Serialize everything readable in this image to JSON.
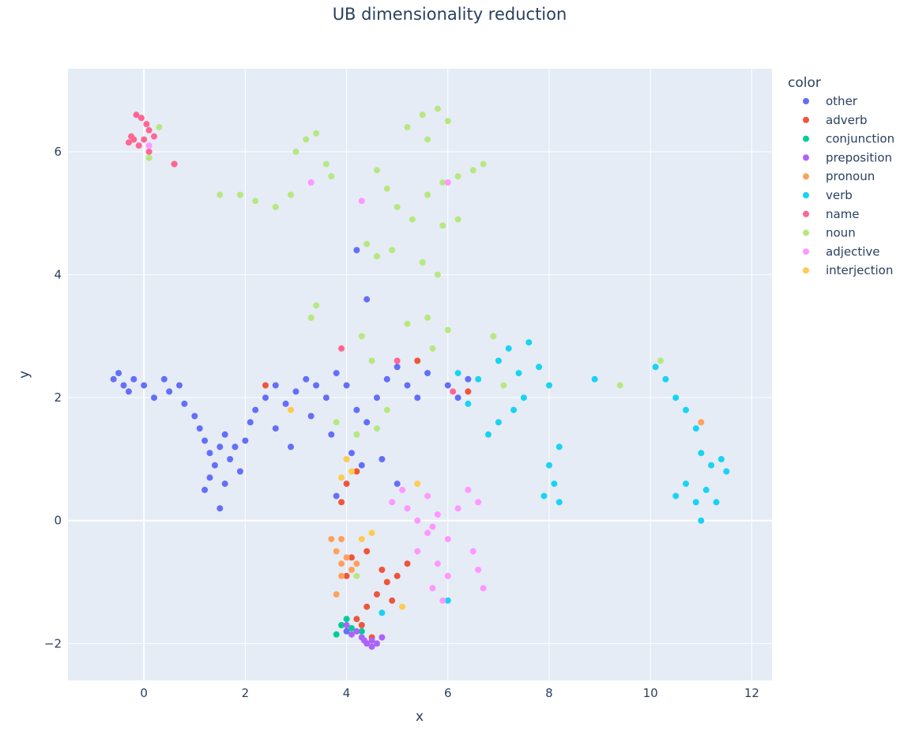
{
  "chart_data": {
    "type": "scatter",
    "title": "UB dimensionality reduction",
    "xlabel": "x",
    "ylabel": "y",
    "xlim": [
      -1.5,
      12.4
    ],
    "ylim": [
      -2.6,
      7.35
    ],
    "x_ticks": [
      0,
      2,
      4,
      6,
      8,
      10,
      12
    ],
    "y_ticks": [
      -2,
      0,
      2,
      4,
      6
    ],
    "y_tick_labels": [
      "−2",
      "0",
      "2",
      "4",
      "6"
    ],
    "grid": true,
    "plot_bg": "#E5ECF6",
    "legend": {
      "title": "color",
      "placement": "right"
    },
    "series": [
      {
        "name": "other",
        "color": "#636efa",
        "points": [
          [
            -0.6,
            2.3
          ],
          [
            -0.4,
            2.2
          ],
          [
            -0.5,
            2.4
          ],
          [
            -0.3,
            2.1
          ],
          [
            -0.2,
            2.3
          ],
          [
            0.0,
            2.2
          ],
          [
            0.2,
            2.0
          ],
          [
            0.4,
            2.3
          ],
          [
            0.5,
            2.1
          ],
          [
            0.7,
            2.2
          ],
          [
            0.8,
            1.9
          ],
          [
            1.0,
            1.7
          ],
          [
            1.1,
            1.5
          ],
          [
            1.2,
            1.3
          ],
          [
            1.3,
            1.1
          ],
          [
            1.4,
            0.9
          ],
          [
            1.5,
            1.2
          ],
          [
            1.6,
            1.4
          ],
          [
            1.7,
            1.0
          ],
          [
            1.8,
            1.2
          ],
          [
            1.9,
            0.8
          ],
          [
            2.0,
            1.3
          ],
          [
            2.1,
            1.6
          ],
          [
            1.6,
            0.6
          ],
          [
            1.3,
            0.7
          ],
          [
            1.2,
            0.5
          ],
          [
            1.5,
            0.2
          ],
          [
            2.2,
            1.8
          ],
          [
            2.4,
            2.0
          ],
          [
            2.6,
            2.2
          ],
          [
            2.8,
            1.9
          ],
          [
            3.0,
            2.1
          ],
          [
            3.2,
            2.3
          ],
          [
            3.4,
            2.2
          ],
          [
            3.6,
            2.0
          ],
          [
            3.8,
            2.4
          ],
          [
            4.0,
            2.2
          ],
          [
            4.2,
            1.8
          ],
          [
            4.4,
            1.6
          ],
          [
            4.6,
            2.0
          ],
          [
            4.8,
            2.3
          ],
          [
            5.0,
            2.5
          ],
          [
            5.2,
            2.2
          ],
          [
            5.4,
            2.0
          ],
          [
            5.6,
            2.4
          ],
          [
            6.0,
            2.2
          ],
          [
            6.2,
            2.0
          ],
          [
            6.4,
            2.3
          ],
          [
            4.4,
            3.6
          ],
          [
            4.2,
            4.4
          ],
          [
            2.6,
            1.5
          ],
          [
            2.9,
            1.2
          ],
          [
            3.3,
            1.7
          ],
          [
            3.7,
            1.4
          ],
          [
            4.1,
            1.1
          ],
          [
            4.3,
            0.9
          ],
          [
            4.7,
            1.0
          ],
          [
            5.0,
            0.6
          ],
          [
            3.8,
            0.4
          ],
          [
            4.0,
            -1.8
          ]
        ]
      },
      {
        "name": "adverb",
        "color": "#EF553B",
        "points": [
          [
            4.2,
            -1.6
          ],
          [
            4.4,
            -1.4
          ],
          [
            4.6,
            -1.2
          ],
          [
            4.8,
            -1.0
          ],
          [
            5.0,
            -0.9
          ],
          [
            4.5,
            -1.9
          ],
          [
            4.3,
            -1.7
          ],
          [
            4.7,
            -0.8
          ],
          [
            5.2,
            -0.7
          ],
          [
            4.0,
            -0.9
          ],
          [
            4.1,
            -0.6
          ],
          [
            4.4,
            -0.5
          ],
          [
            4.9,
            -1.3
          ],
          [
            3.9,
            0.3
          ],
          [
            4.0,
            0.6
          ],
          [
            4.2,
            0.8
          ],
          [
            2.4,
            2.2
          ],
          [
            6.4,
            2.1
          ],
          [
            0.6,
            5.8
          ],
          [
            5.4,
            2.6
          ]
        ]
      },
      {
        "name": "conjunction",
        "color": "#00cc96",
        "points": [
          [
            3.8,
            -1.85
          ],
          [
            3.9,
            -1.7
          ],
          [
            4.0,
            -1.6
          ],
          [
            4.1,
            -1.75
          ],
          [
            4.3,
            -1.8
          ]
        ]
      },
      {
        "name": "preposition",
        "color": "#ab63fa",
        "points": [
          [
            4.3,
            -1.9
          ],
          [
            4.4,
            -2.0
          ],
          [
            4.5,
            -2.05
          ],
          [
            4.6,
            -2.0
          ],
          [
            4.2,
            -1.8
          ],
          [
            4.0,
            -1.7
          ],
          [
            4.1,
            -1.85
          ],
          [
            4.7,
            -1.9
          ],
          [
            4.5,
            -1.95
          ],
          [
            4.35,
            -1.95
          ]
        ]
      },
      {
        "name": "pronoun",
        "color": "#FFA15A",
        "points": [
          [
            3.7,
            -0.3
          ],
          [
            3.8,
            -0.5
          ],
          [
            3.9,
            -0.7
          ],
          [
            4.0,
            -0.6
          ],
          [
            4.1,
            -0.8
          ],
          [
            3.8,
            -1.2
          ],
          [
            3.9,
            -0.9
          ],
          [
            4.2,
            -0.7
          ],
          [
            3.9,
            -0.3
          ],
          [
            11.0,
            1.6
          ]
        ]
      },
      {
        "name": "verb",
        "color": "#19d3f3",
        "points": [
          [
            7.0,
            2.6
          ],
          [
            7.2,
            2.8
          ],
          [
            7.4,
            2.4
          ],
          [
            7.6,
            2.9
          ],
          [
            7.8,
            2.5
          ],
          [
            8.0,
            2.2
          ],
          [
            7.5,
            2.0
          ],
          [
            7.3,
            1.8
          ],
          [
            7.0,
            1.6
          ],
          [
            6.8,
            1.4
          ],
          [
            8.0,
            0.9
          ],
          [
            8.1,
            0.6
          ],
          [
            8.2,
            0.3
          ],
          [
            7.9,
            0.4
          ],
          [
            8.2,
            1.2
          ],
          [
            10.1,
            2.5
          ],
          [
            10.3,
            2.3
          ],
          [
            10.5,
            2.0
          ],
          [
            10.7,
            1.8
          ],
          [
            10.9,
            1.5
          ],
          [
            11.0,
            1.1
          ],
          [
            11.2,
            0.9
          ],
          [
            11.4,
            1.0
          ],
          [
            11.5,
            0.8
          ],
          [
            11.1,
            0.5
          ],
          [
            10.9,
            0.3
          ],
          [
            10.7,
            0.6
          ],
          [
            10.5,
            0.4
          ],
          [
            11.0,
            0.0
          ],
          [
            11.3,
            0.3
          ],
          [
            6.2,
            2.4
          ],
          [
            6.6,
            2.3
          ],
          [
            6.4,
            1.9
          ],
          [
            8.9,
            2.3
          ],
          [
            6.0,
            -1.3
          ],
          [
            4.7,
            -1.5
          ]
        ]
      },
      {
        "name": "name",
        "color": "#FF6692",
        "points": [
          [
            -0.15,
            6.6
          ],
          [
            -0.05,
            6.55
          ],
          [
            0.05,
            6.45
          ],
          [
            0.1,
            6.35
          ],
          [
            -0.2,
            6.2
          ],
          [
            -0.3,
            6.15
          ],
          [
            -0.1,
            6.1
          ],
          [
            0.0,
            6.2
          ],
          [
            0.2,
            6.25
          ],
          [
            0.6,
            5.8
          ],
          [
            0.1,
            6.0
          ],
          [
            -0.25,
            6.25
          ],
          [
            3.9,
            2.8
          ],
          [
            5.0,
            2.6
          ],
          [
            6.1,
            2.1
          ]
        ]
      },
      {
        "name": "noun",
        "color": "#B6E880",
        "points": [
          [
            5.2,
            6.4
          ],
          [
            5.5,
            6.6
          ],
          [
            5.8,
            6.7
          ],
          [
            6.0,
            6.5
          ],
          [
            5.6,
            6.2
          ],
          [
            4.6,
            5.7
          ],
          [
            4.8,
            5.4
          ],
          [
            5.0,
            5.1
          ],
          [
            5.3,
            4.9
          ],
          [
            5.6,
            5.3
          ],
          [
            5.9,
            5.5
          ],
          [
            6.2,
            5.6
          ],
          [
            6.5,
            5.7
          ],
          [
            6.7,
            5.8
          ],
          [
            5.9,
            4.8
          ],
          [
            6.2,
            4.9
          ],
          [
            4.4,
            4.5
          ],
          [
            4.6,
            4.3
          ],
          [
            4.9,
            4.4
          ],
          [
            5.5,
            4.2
          ],
          [
            5.8,
            4.0
          ],
          [
            3.0,
            6.0
          ],
          [
            3.2,
            6.2
          ],
          [
            3.4,
            6.3
          ],
          [
            3.6,
            5.8
          ],
          [
            3.7,
            5.6
          ],
          [
            2.9,
            5.3
          ],
          [
            2.6,
            5.1
          ],
          [
            2.2,
            5.2
          ],
          [
            1.9,
            5.3
          ],
          [
            1.5,
            5.3
          ],
          [
            3.3,
            3.3
          ],
          [
            3.4,
            3.5
          ],
          [
            4.3,
            3.0
          ],
          [
            4.5,
            2.6
          ],
          [
            5.2,
            3.2
          ],
          [
            5.6,
            3.3
          ],
          [
            5.7,
            2.8
          ],
          [
            6.0,
            3.1
          ],
          [
            6.9,
            3.0
          ],
          [
            7.1,
            2.2
          ],
          [
            4.8,
            1.8
          ],
          [
            4.6,
            1.5
          ],
          [
            4.2,
            1.4
          ],
          [
            3.8,
            1.6
          ],
          [
            9.4,
            2.2
          ],
          [
            10.2,
            2.6
          ],
          [
            0.1,
            5.9
          ],
          [
            0.3,
            6.4
          ],
          [
            4.2,
            -0.9
          ]
        ]
      },
      {
        "name": "adjective",
        "color": "#FF97FF",
        "points": [
          [
            5.2,
            0.2
          ],
          [
            5.4,
            0.0
          ],
          [
            5.6,
            -0.2
          ],
          [
            5.8,
            0.1
          ],
          [
            6.0,
            -0.3
          ],
          [
            6.2,
            0.2
          ],
          [
            5.6,
            0.4
          ],
          [
            5.4,
            -0.5
          ],
          [
            5.8,
            -0.7
          ],
          [
            6.0,
            -0.9
          ],
          [
            5.7,
            -1.1
          ],
          [
            5.9,
            -1.3
          ],
          [
            6.5,
            -0.5
          ],
          [
            6.6,
            -0.8
          ],
          [
            6.7,
            -1.1
          ],
          [
            6.4,
            0.5
          ],
          [
            6.6,
            0.3
          ],
          [
            5.1,
            0.5
          ],
          [
            4.9,
            0.3
          ],
          [
            4.3,
            5.2
          ],
          [
            3.3,
            5.5
          ],
          [
            6.0,
            5.5
          ],
          [
            0.1,
            6.1
          ],
          [
            5.7,
            -0.1
          ]
        ]
      },
      {
        "name": "interjection",
        "color": "#FECB52",
        "points": [
          [
            4.0,
            1.0
          ],
          [
            4.1,
            0.8
          ],
          [
            3.9,
            0.7
          ],
          [
            4.3,
            -0.3
          ],
          [
            4.5,
            -0.2
          ],
          [
            2.9,
            1.8
          ],
          [
            5.4,
            0.6
          ],
          [
            5.1,
            -1.4
          ]
        ]
      }
    ]
  }
}
